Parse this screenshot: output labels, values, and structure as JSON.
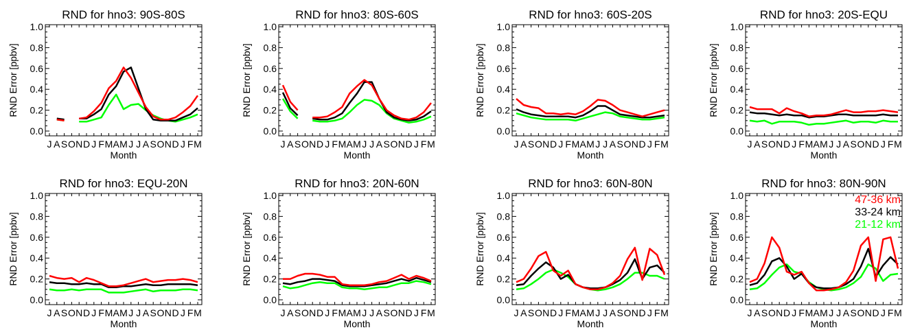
{
  "colors": {
    "red": "#ff0000",
    "black": "#000000",
    "green": "#00ff00",
    "background": "#ffffff"
  },
  "month_axis": {
    "label": "Month",
    "tick_labels": [
      "J",
      "A",
      "S",
      "O",
      "N",
      "D",
      "J",
      "F",
      "M",
      "A",
      "M",
      "J",
      "J",
      "A",
      "S",
      "O",
      "N",
      "D",
      "J",
      "F",
      "M"
    ]
  },
  "y_axis": {
    "label": "RND Error [ppbv]",
    "tick_labels": [
      "0.0",
      "0.2",
      "0.4",
      "0.6",
      "0.8",
      "1.0"
    ]
  },
  "chart_data": [
    {
      "type": "line",
      "title": "RND for hno3: 90S-80S",
      "xlabel": "Month",
      "ylabel": "RND Error [ppbv]",
      "ylim": [
        0,
        1.0
      ],
      "categories": [
        "J",
        "A",
        "S",
        "O",
        "N",
        "D",
        "J",
        "F",
        "M",
        "A",
        "M",
        "J",
        "J",
        "A",
        "S",
        "O",
        "N",
        "D",
        "J",
        "F",
        "M"
      ],
      "series": [
        {
          "color": "#ff0000",
          "values": [
            null,
            0.11,
            0.1,
            null,
            0.12,
            0.13,
            0.19,
            0.27,
            0.41,
            0.48,
            0.61,
            0.51,
            0.37,
            0.23,
            0.14,
            0.11,
            0.11,
            0.13,
            0.18,
            0.24,
            0.34
          ]
        },
        {
          "color": "#000000",
          "values": [
            null,
            0.12,
            0.11,
            null,
            0.12,
            0.12,
            0.16,
            0.21,
            0.35,
            0.43,
            0.57,
            0.61,
            0.41,
            0.21,
            0.11,
            0.1,
            0.1,
            0.1,
            0.13,
            0.16,
            0.22
          ]
        },
        {
          "color": "#00ff00",
          "values": [
            null,
            0.11,
            0.1,
            null,
            0.09,
            0.09,
            0.11,
            0.13,
            0.25,
            0.35,
            0.21,
            0.25,
            0.26,
            0.2,
            0.15,
            0.12,
            0.1,
            0.09,
            0.11,
            0.13,
            0.16
          ]
        }
      ]
    },
    {
      "type": "line",
      "title": "RND for hno3: 80S-60S",
      "xlabel": "Month",
      "ylabel": "RND Error [ppbv]",
      "ylim": [
        0,
        1.0
      ],
      "categories": [
        "J",
        "A",
        "S",
        "O",
        "N",
        "D",
        "J",
        "F",
        "M",
        "A",
        "M",
        "J",
        "J",
        "A",
        "S",
        "O",
        "N",
        "D",
        "J",
        "F",
        "M"
      ],
      "series": [
        {
          "color": "#ff0000",
          "values": [
            0.44,
            0.28,
            0.2,
            null,
            0.13,
            0.13,
            0.14,
            0.18,
            0.23,
            0.36,
            0.43,
            0.49,
            0.44,
            0.31,
            0.2,
            0.15,
            0.12,
            0.11,
            0.13,
            0.18,
            0.27
          ]
        },
        {
          "color": "#000000",
          "values": [
            0.37,
            0.22,
            0.15,
            null,
            0.12,
            0.11,
            0.11,
            0.13,
            0.17,
            0.27,
            0.36,
            0.47,
            0.47,
            0.31,
            0.18,
            0.13,
            0.11,
            0.1,
            0.11,
            0.14,
            0.19
          ]
        },
        {
          "color": "#00ff00",
          "values": [
            0.31,
            0.19,
            0.12,
            null,
            0.1,
            0.09,
            0.09,
            0.1,
            0.12,
            0.18,
            0.25,
            0.3,
            0.29,
            0.25,
            0.17,
            0.12,
            0.1,
            0.08,
            0.09,
            0.11,
            0.14
          ]
        }
      ]
    },
    {
      "type": "line",
      "title": "RND for hno3: 60S-20S",
      "xlabel": "Month",
      "ylabel": "RND Error [ppbv]",
      "ylim": [
        0,
        1.0
      ],
      "categories": [
        "J",
        "A",
        "S",
        "O",
        "N",
        "D",
        "J",
        "F",
        "M",
        "A",
        "M",
        "J",
        "J",
        "A",
        "S",
        "O",
        "N",
        "D",
        "J",
        "F",
        "M"
      ],
      "series": [
        {
          "color": "#ff0000",
          "values": [
            0.31,
            0.25,
            0.23,
            0.22,
            0.17,
            0.17,
            0.16,
            0.17,
            0.16,
            0.19,
            0.24,
            0.3,
            0.29,
            0.25,
            0.2,
            0.18,
            0.16,
            0.14,
            0.16,
            0.18,
            0.2
          ]
        },
        {
          "color": "#000000",
          "values": [
            0.21,
            0.18,
            0.16,
            0.15,
            0.14,
            0.14,
            0.14,
            0.14,
            0.13,
            0.15,
            0.19,
            0.24,
            0.24,
            0.2,
            0.16,
            0.15,
            0.14,
            0.13,
            0.13,
            0.14,
            0.15
          ]
        },
        {
          "color": "#00ff00",
          "values": [
            0.17,
            0.15,
            0.13,
            0.12,
            0.11,
            0.11,
            0.11,
            0.11,
            0.1,
            0.12,
            0.14,
            0.16,
            0.18,
            0.17,
            0.14,
            0.13,
            0.12,
            0.11,
            0.11,
            0.12,
            0.13
          ]
        }
      ]
    },
    {
      "type": "line",
      "title": "RND for hno3: 20S-EQU",
      "xlabel": "Month",
      "ylabel": "RND Error [ppbv]",
      "ylim": [
        0,
        1.0
      ],
      "categories": [
        "J",
        "A",
        "S",
        "O",
        "N",
        "D",
        "J",
        "F",
        "M",
        "A",
        "M",
        "J",
        "J",
        "A",
        "S",
        "O",
        "N",
        "D",
        "J",
        "F",
        "M"
      ],
      "series": [
        {
          "color": "#ff0000",
          "values": [
            0.23,
            0.21,
            0.21,
            0.21,
            0.17,
            0.22,
            0.19,
            0.17,
            0.14,
            0.15,
            0.15,
            0.16,
            0.18,
            0.2,
            0.18,
            0.18,
            0.19,
            0.19,
            0.2,
            0.19,
            0.18
          ]
        },
        {
          "color": "#000000",
          "values": [
            0.18,
            0.17,
            0.17,
            0.16,
            0.15,
            0.16,
            0.15,
            0.15,
            0.13,
            0.14,
            0.14,
            0.15,
            0.16,
            0.16,
            0.15,
            0.15,
            0.15,
            0.15,
            0.16,
            0.15,
            0.15
          ]
        },
        {
          "color": "#00ff00",
          "values": [
            0.1,
            0.09,
            0.1,
            0.07,
            0.09,
            0.09,
            0.09,
            0.08,
            0.06,
            0.07,
            0.07,
            0.08,
            0.09,
            0.1,
            0.08,
            0.09,
            0.09,
            0.08,
            0.1,
            0.09,
            0.09
          ]
        }
      ]
    },
    {
      "type": "line",
      "title": "RND for hno3: EQU-20N",
      "xlabel": "Month",
      "ylabel": "RND Error [ppbv]",
      "ylim": [
        0,
        1.0
      ],
      "categories": [
        "J",
        "A",
        "S",
        "O",
        "N",
        "D",
        "J",
        "F",
        "M",
        "A",
        "M",
        "J",
        "J",
        "A",
        "S",
        "O",
        "N",
        "D",
        "J",
        "F",
        "M"
      ],
      "series": [
        {
          "color": "#ff0000",
          "values": [
            0.23,
            0.21,
            0.2,
            0.21,
            0.17,
            0.21,
            0.19,
            0.16,
            0.13,
            0.13,
            0.14,
            0.16,
            0.18,
            0.2,
            0.17,
            0.18,
            0.19,
            0.19,
            0.2,
            0.19,
            0.17
          ]
        },
        {
          "color": "#000000",
          "values": [
            0.17,
            0.16,
            0.16,
            0.15,
            0.15,
            0.16,
            0.15,
            0.15,
            0.12,
            0.12,
            0.13,
            0.13,
            0.14,
            0.15,
            0.14,
            0.14,
            0.15,
            0.15,
            0.15,
            0.15,
            0.14
          ]
        },
        {
          "color": "#00ff00",
          "values": [
            0.1,
            0.09,
            0.09,
            0.1,
            0.09,
            0.1,
            0.1,
            0.1,
            0.07,
            0.07,
            0.07,
            0.08,
            0.09,
            0.1,
            0.08,
            0.09,
            0.09,
            0.09,
            0.1,
            0.1,
            0.09
          ]
        }
      ]
    },
    {
      "type": "line",
      "title": "RND for hno3: 20N-60N",
      "xlabel": "Month",
      "ylabel": "RND Error [ppbv]",
      "ylim": [
        0,
        1.0
      ],
      "categories": [
        "J",
        "A",
        "S",
        "O",
        "N",
        "D",
        "J",
        "F",
        "M",
        "A",
        "M",
        "J",
        "J",
        "A",
        "S",
        "O",
        "N",
        "D",
        "J",
        "F",
        "M"
      ],
      "series": [
        {
          "color": "#ff0000",
          "values": [
            0.2,
            0.2,
            0.23,
            0.25,
            0.25,
            0.24,
            0.22,
            0.22,
            0.15,
            0.14,
            0.14,
            0.14,
            0.15,
            0.17,
            0.18,
            0.21,
            0.24,
            0.2,
            0.23,
            0.21,
            0.18
          ]
        },
        {
          "color": "#000000",
          "values": [
            0.16,
            0.15,
            0.17,
            0.18,
            0.2,
            0.2,
            0.19,
            0.18,
            0.14,
            0.13,
            0.13,
            0.13,
            0.14,
            0.15,
            0.16,
            0.18,
            0.2,
            0.18,
            0.21,
            0.19,
            0.17
          ]
        },
        {
          "color": "#00ff00",
          "values": [
            0.13,
            0.11,
            0.12,
            0.14,
            0.16,
            0.17,
            0.16,
            0.16,
            0.12,
            0.11,
            0.11,
            0.1,
            0.11,
            0.12,
            0.12,
            0.14,
            0.16,
            0.16,
            0.18,
            0.17,
            0.15
          ]
        }
      ]
    },
    {
      "type": "line",
      "title": "RND for hno3: 60N-80N",
      "xlabel": "Month",
      "ylabel": "RND Error [ppbv]",
      "ylim": [
        0,
        1.0
      ],
      "categories": [
        "J",
        "A",
        "S",
        "O",
        "N",
        "D",
        "J",
        "F",
        "M",
        "A",
        "M",
        "J",
        "J",
        "A",
        "S",
        "O",
        "N",
        "D",
        "J",
        "F",
        "M"
      ],
      "series": [
        {
          "color": "#ff0000",
          "values": [
            0.17,
            0.2,
            0.3,
            0.42,
            0.46,
            0.28,
            0.23,
            0.28,
            0.15,
            0.12,
            0.1,
            0.1,
            0.12,
            0.16,
            0.23,
            0.39,
            0.5,
            0.19,
            0.49,
            0.43,
            0.24
          ]
        },
        {
          "color": "#000000",
          "values": [
            0.14,
            0.15,
            0.23,
            0.3,
            0.36,
            0.31,
            0.2,
            0.24,
            0.15,
            0.12,
            0.11,
            0.11,
            0.12,
            0.15,
            0.19,
            0.26,
            0.39,
            0.2,
            0.31,
            0.33,
            0.26
          ]
        },
        {
          "color": "#00ff00",
          "values": [
            0.1,
            0.11,
            0.15,
            0.2,
            0.26,
            0.29,
            0.26,
            0.22,
            0.15,
            0.12,
            0.1,
            0.09,
            0.1,
            0.12,
            0.15,
            0.2,
            0.26,
            0.26,
            0.23,
            0.23,
            0.2
          ]
        }
      ]
    },
    {
      "type": "line",
      "title": "RND for hno3: 80N-90N",
      "xlabel": "Month",
      "ylabel": "RND Error [ppbv]",
      "ylim": [
        0,
        1.0
      ],
      "categories": [
        "J",
        "A",
        "S",
        "O",
        "N",
        "D",
        "J",
        "F",
        "M",
        "A",
        "M",
        "J",
        "J",
        "A",
        "S",
        "O",
        "N",
        "D",
        "J",
        "F",
        "M"
      ],
      "legend": {
        "position": "top-right",
        "entries": [
          "47-36 km",
          "33-24 km",
          "21-12 km"
        ]
      },
      "series": [
        {
          "name": "47-36 km",
          "color": "#ff0000",
          "values": [
            0.17,
            0.2,
            0.35,
            0.6,
            0.5,
            0.27,
            0.24,
            0.27,
            0.16,
            0.09,
            0.09,
            0.1,
            0.12,
            0.17,
            0.28,
            0.52,
            0.6,
            0.18,
            0.58,
            0.6,
            0.3
          ]
        },
        {
          "name": "33-24 km",
          "color": "#000000",
          "values": [
            0.14,
            0.16,
            0.24,
            0.37,
            0.4,
            0.32,
            0.2,
            0.25,
            0.16,
            0.12,
            0.11,
            0.11,
            0.12,
            0.15,
            0.2,
            0.32,
            0.49,
            0.22,
            0.33,
            0.41,
            0.34
          ]
        },
        {
          "name": "21-12 km",
          "color": "#00ff00",
          "values": [
            0.1,
            0.11,
            0.16,
            0.24,
            0.31,
            0.34,
            0.27,
            0.25,
            0.17,
            0.12,
            0.1,
            0.09,
            0.1,
            0.12,
            0.16,
            0.22,
            0.34,
            0.3,
            0.18,
            0.24,
            0.25
          ]
        }
      ]
    }
  ]
}
